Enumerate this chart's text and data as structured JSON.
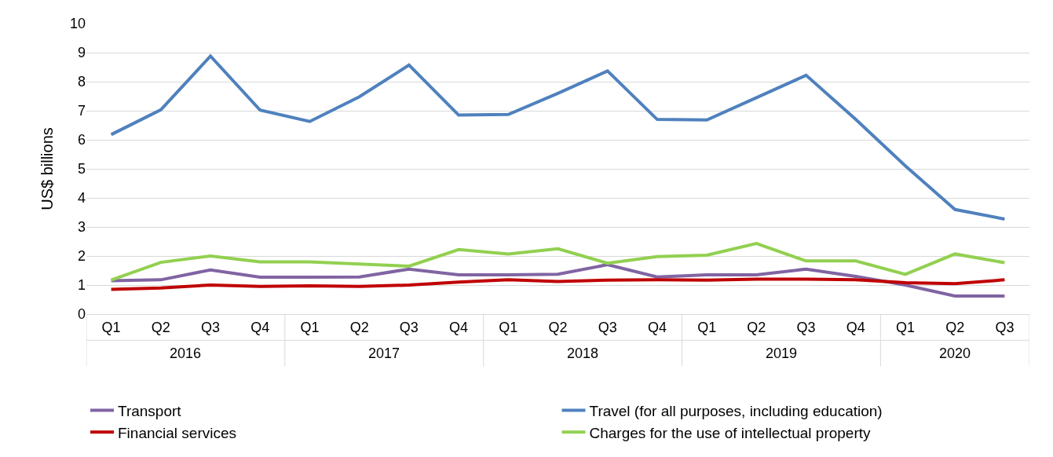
{
  "chart_data": {
    "type": "line",
    "ylabel": "US$ billions",
    "categories": [
      "Q1",
      "Q2",
      "Q3",
      "Q4",
      "Q1",
      "Q2",
      "Q3",
      "Q4",
      "Q1",
      "Q2",
      "Q3",
      "Q4",
      "Q1",
      "Q2",
      "Q3",
      "Q4",
      "Q1",
      "Q2",
      "Q3"
    ],
    "annotations": [
      "2016",
      "2017",
      "2018",
      "2019",
      "2020"
    ],
    "series": [
      {
        "name": "Transport",
        "color": "#8064a2",
        "values": [
          1.15,
          1.18,
          1.52,
          1.27,
          1.27,
          1.28,
          1.55,
          1.35,
          1.35,
          1.37,
          1.7,
          1.28,
          1.35,
          1.35,
          1.55,
          1.3,
          1.0,
          0.62,
          0.62
        ]
      },
      {
        "name": "Travel (for all purposes, including education)",
        "color": "#4f81bd",
        "values": [
          6.18,
          7.03,
          8.88,
          7.02,
          6.63,
          7.48,
          8.57,
          6.85,
          6.87,
          7.6,
          8.37,
          6.7,
          6.68,
          7.45,
          8.22,
          6.7,
          5.1,
          3.6,
          3.27
        ]
      },
      {
        "name": "Financial services",
        "color": "#c00000",
        "values": [
          0.85,
          0.9,
          1.0,
          0.95,
          0.97,
          0.95,
          1.0,
          1.1,
          1.18,
          1.12,
          1.17,
          1.18,
          1.17,
          1.2,
          1.2,
          1.18,
          1.08,
          1.05,
          1.18
        ]
      },
      {
        "name": "Charges for the use of intellectual property",
        "color": "#92d050",
        "values": [
          1.17,
          1.78,
          2.0,
          1.8,
          1.8,
          1.72,
          1.65,
          2.22,
          2.07,
          2.25,
          1.75,
          1.98,
          2.03,
          2.43,
          1.83,
          1.83,
          1.37,
          2.07,
          1.77
        ]
      }
    ],
    "ylim": [
      0,
      10
    ],
    "yticks": [
      0,
      1,
      2,
      3,
      4,
      5,
      6,
      7,
      8,
      9,
      10
    ],
    "grid": "y",
    "legend": "bottom",
    "marker": "none",
    "line_style": "solid"
  }
}
